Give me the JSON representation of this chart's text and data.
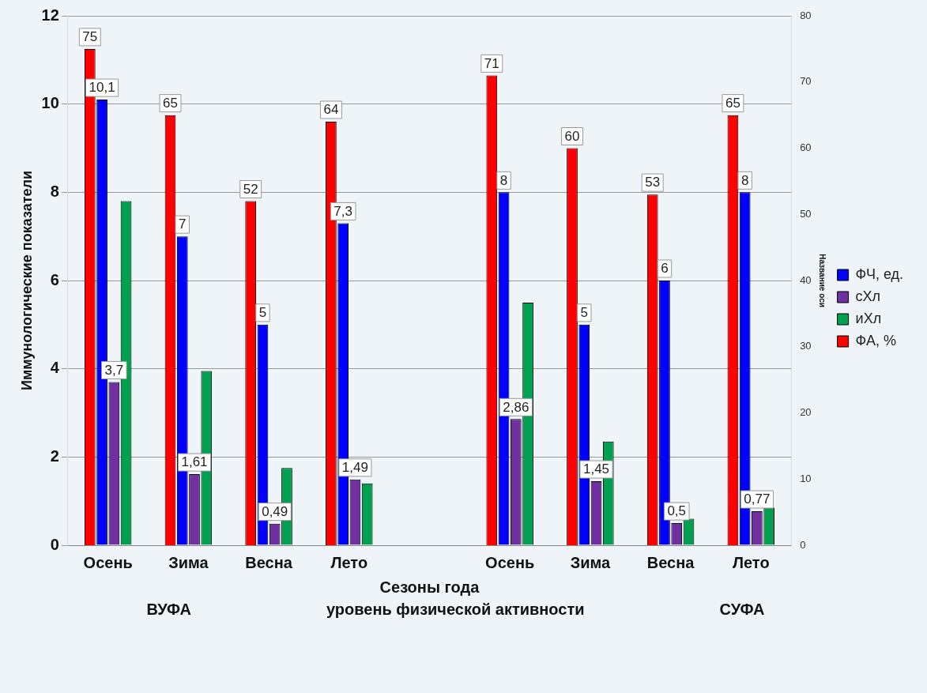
{
  "chart_data": {
    "type": "bar",
    "xlabel": "Сезоны года",
    "ylabel": "Иммунологические показатели",
    "y2label": "Название оси",
    "categories": [
      "Осень",
      "Зима",
      "Весна",
      "Лето",
      null,
      "Осень",
      "Зима",
      "Весна",
      "Лето"
    ],
    "series": [
      {
        "name": "ФА, %",
        "color": "#ff0000",
        "axis": "y2",
        "values": [
          75,
          65,
          52,
          64,
          null,
          71,
          60,
          53,
          65
        ],
        "value_labels": [
          "75",
          "65",
          "52",
          "64",
          null,
          "71",
          "60",
          "53",
          "65"
        ]
      },
      {
        "name": "ФЧ, ед.",
        "color": "#0000ff",
        "values": [
          10.1,
          7,
          5,
          7.3,
          null,
          8,
          5,
          6,
          8
        ],
        "value_labels": [
          "10,1",
          "7",
          "5",
          "7,3",
          null,
          "8",
          "5",
          "6",
          "8"
        ]
      },
      {
        "name": "сХл",
        "color": "#7030a0",
        "values": [
          3.7,
          1.61,
          0.49,
          1.49,
          null,
          2.86,
          1.45,
          0.5,
          0.77
        ],
        "value_labels": [
          "3,7",
          "1,61",
          "0,49",
          "1,49",
          null,
          "2,86",
          "1,45",
          "0,5",
          "0,77"
        ]
      },
      {
        "name": "иХл",
        "color": "#00a050",
        "values": [
          7.8,
          3.95,
          1.75,
          1.4,
          null,
          5.5,
          2.35,
          0.6,
          0.85
        ]
      }
    ],
    "ylim": [
      0,
      12
    ],
    "yticks": [
      0,
      2,
      4,
      6,
      8,
      10,
      12
    ],
    "y2lim": [
      0,
      80
    ],
    "y2ticks": [
      0,
      10,
      20,
      30,
      40,
      50,
      60,
      70,
      80
    ],
    "grid": "y",
    "legend": "right",
    "annotations": [
      "ВУФА",
      "уровень физической активности",
      "СУФА"
    ]
  }
}
